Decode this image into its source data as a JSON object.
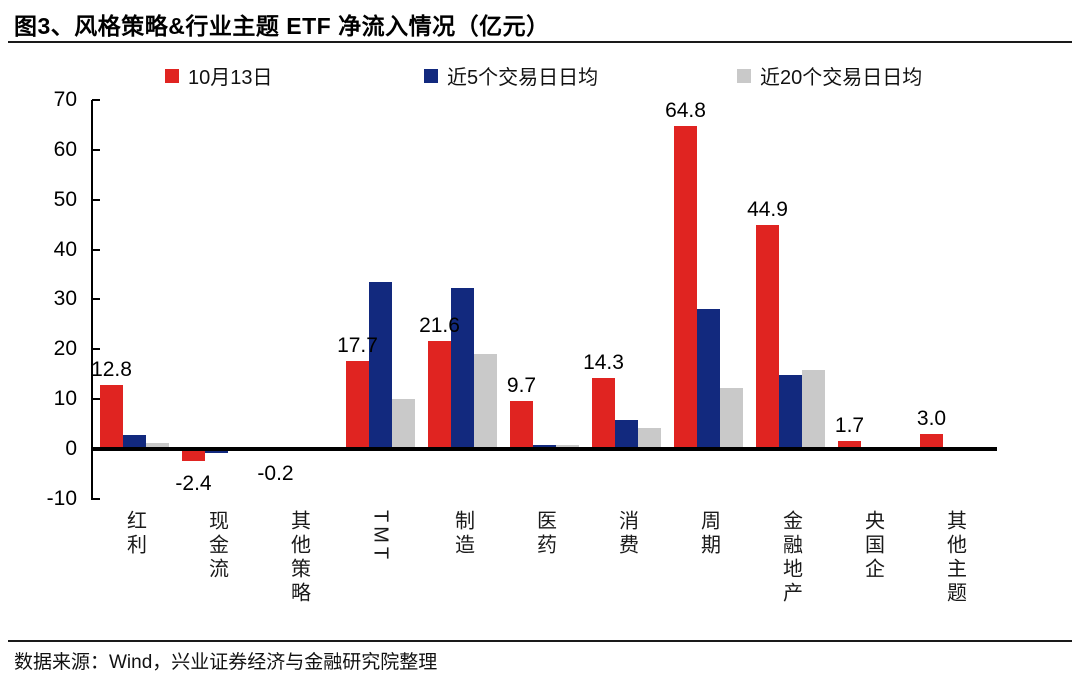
{
  "title": "图3、风格策略&行业主题 ETF 净流入情况（亿元）",
  "source": "数据来源：Wind，兴业证券经济与金融研究院整理",
  "chart_data": {
    "type": "bar",
    "title": "图3、风格策略&行业主题 ETF 净流入情况（亿元）",
    "xlabel": "",
    "ylabel": "",
    "unit": "亿元",
    "categories": [
      "红利",
      "现金流",
      "其他策略",
      "TMT",
      "制造",
      "医药",
      "消费",
      "周期",
      "金融地产",
      "央国企",
      "其他主题"
    ],
    "series": [
      {
        "name": "10月13日",
        "color": "#e02421",
        "values": [
          12.8,
          -2.4,
          -0.2,
          17.7,
          21.6,
          9.7,
          14.3,
          64.8,
          44.9,
          1.7,
          3.0
        ],
        "data_labels": [
          "12.8",
          "-2.4",
          "-0.2",
          "17.7",
          "21.6",
          "9.7",
          "14.3",
          "64.8",
          "44.9",
          "1.7",
          "3.0"
        ]
      },
      {
        "name": "近5个交易日日均",
        "color": "#12297e",
        "values": [
          2.8,
          -0.8,
          -0.1,
          33.5,
          32.3,
          0.8,
          5.9,
          28.1,
          14.8,
          -0.1,
          0.1
        ]
      },
      {
        "name": "近20个交易日日均",
        "color": "#c9c9c9",
        "values": [
          1.2,
          -0.1,
          -0.5,
          10.0,
          19.0,
          0.8,
          4.3,
          12.2,
          15.8,
          -0.4,
          0.1
        ]
      }
    ],
    "ylim": [
      -10,
      70
    ],
    "yticks": [
      70,
      60,
      50,
      40,
      30,
      20,
      10,
      0,
      -10
    ],
    "grid": false,
    "legend_position": "top",
    "axis_color": "#000000"
  }
}
